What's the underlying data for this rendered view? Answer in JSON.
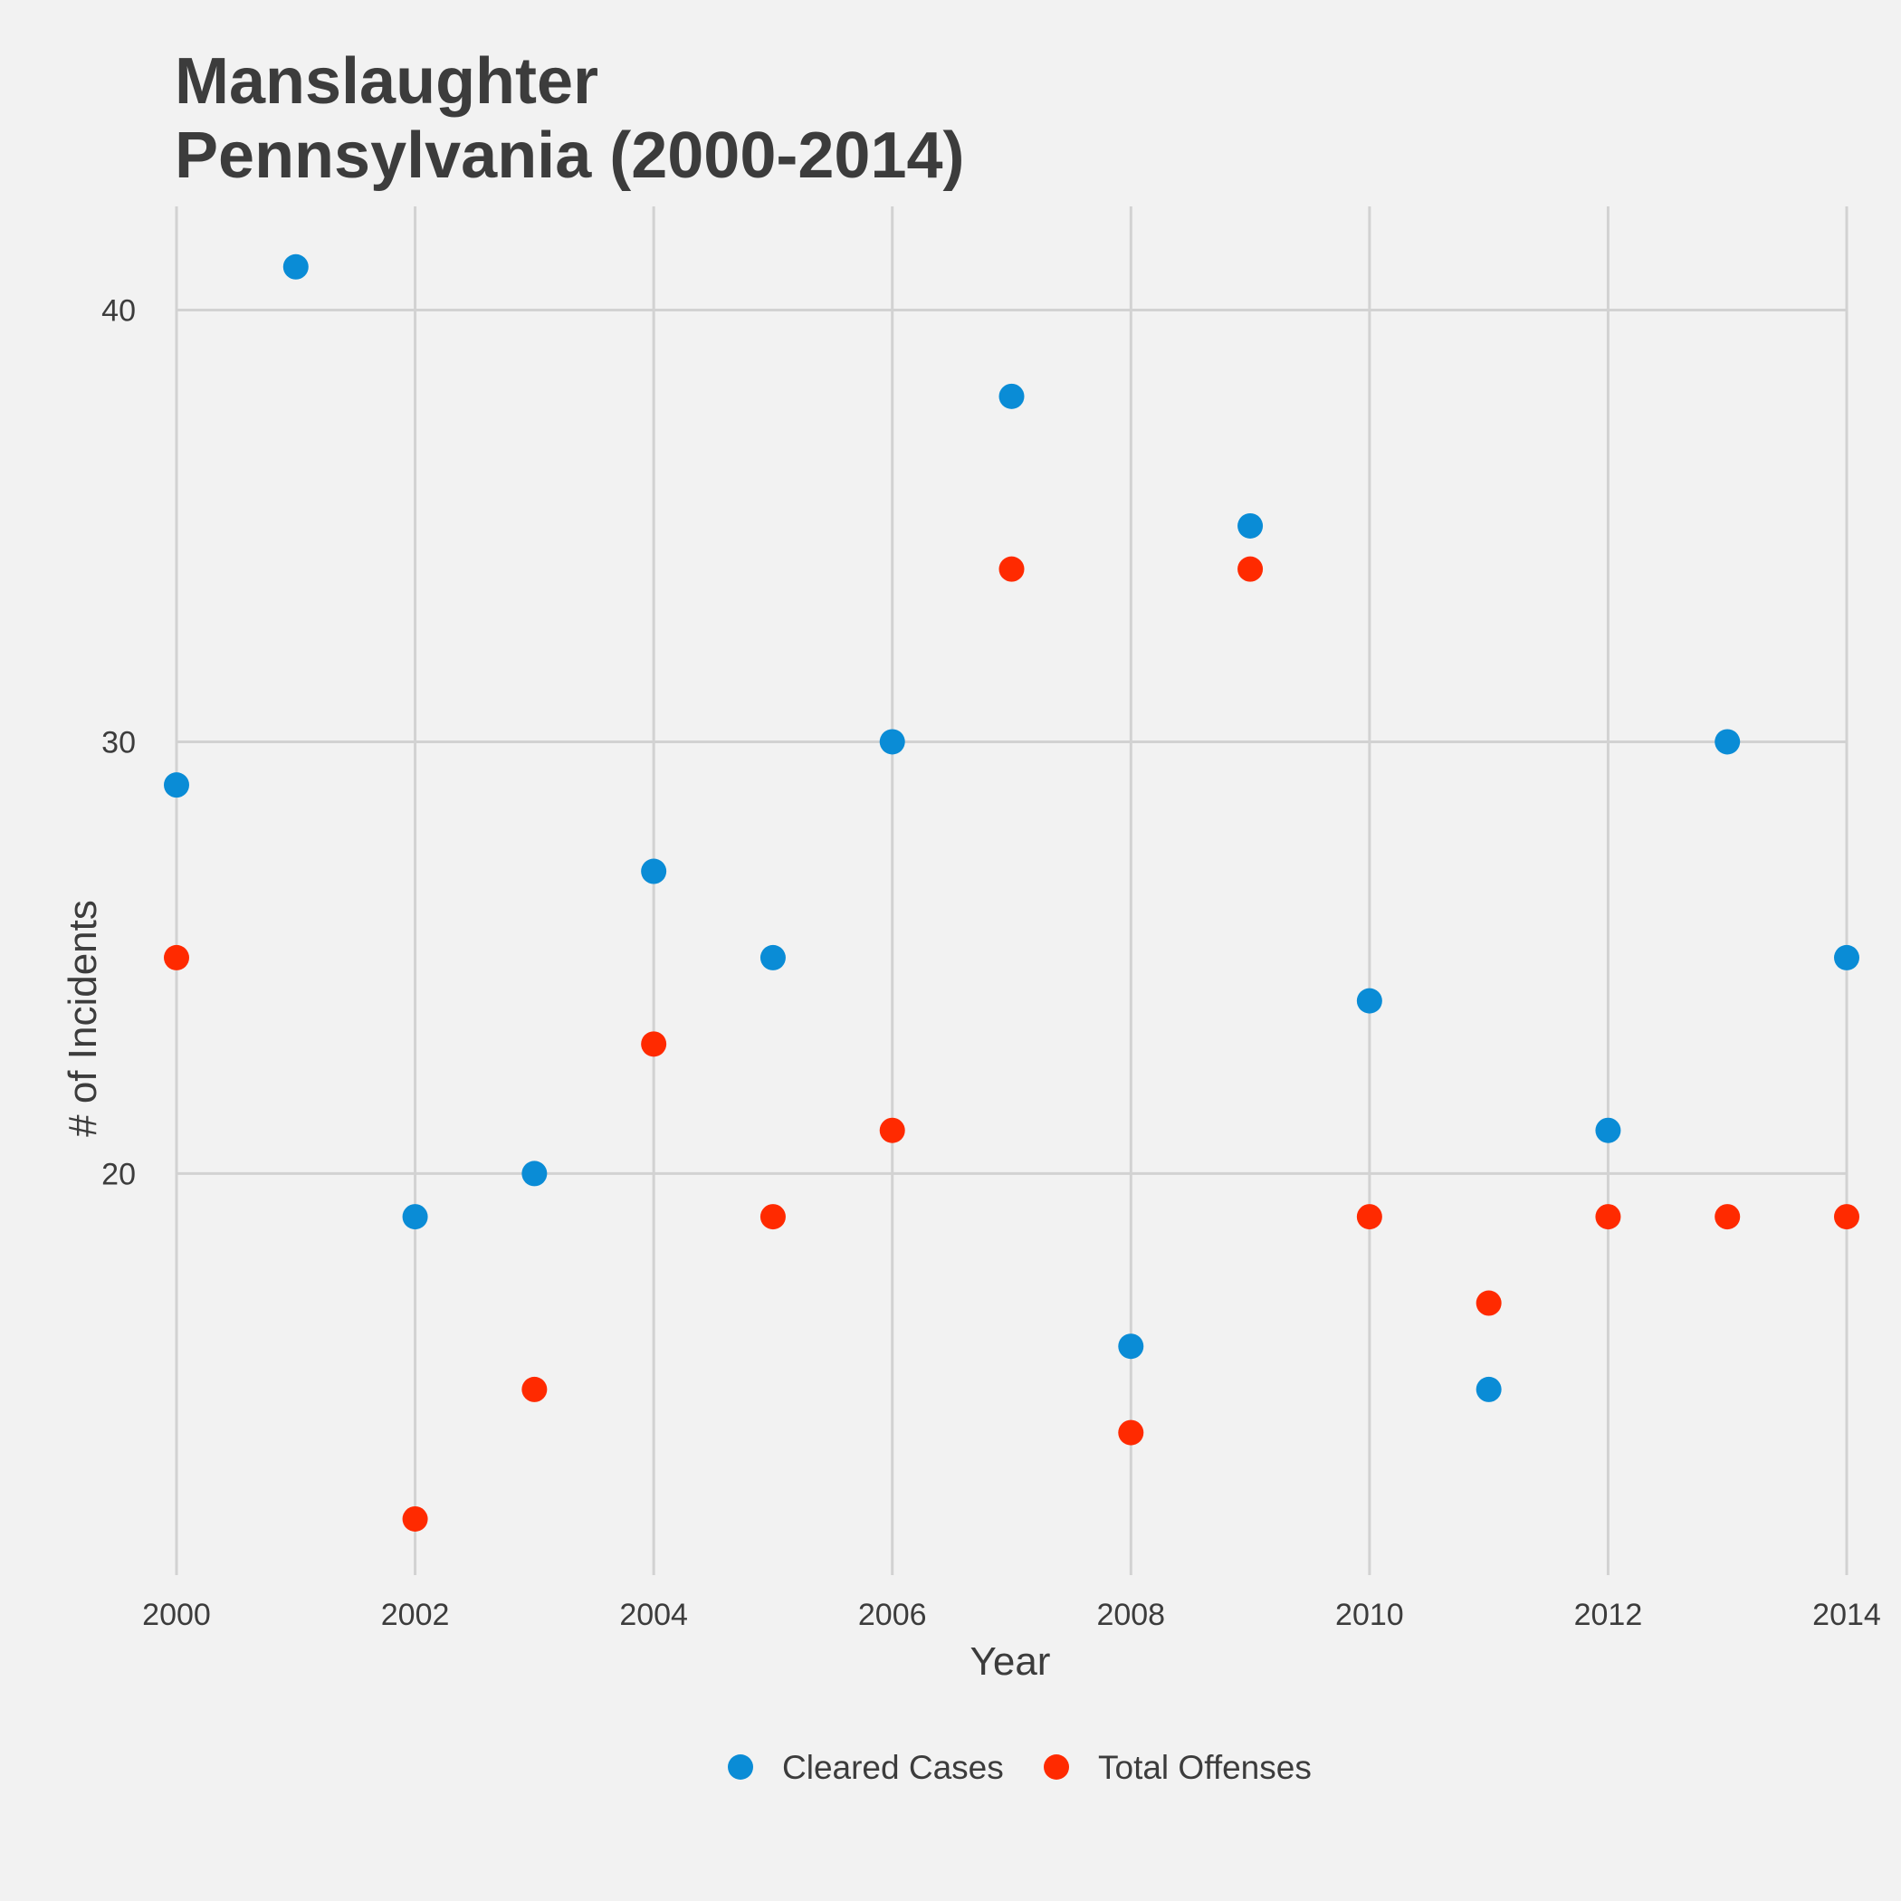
{
  "chart_data": {
    "type": "scatter",
    "title": "Manslaughter",
    "subtitle": "Pennsylvania (2000-2014)",
    "xlabel": "Year",
    "ylabel": "# of Incidents",
    "xlim": [
      2000,
      2014
    ],
    "ylim": [
      10.7,
      42.4
    ],
    "x_ticks": [
      2000,
      2002,
      2004,
      2006,
      2008,
      2010,
      2012,
      2014
    ],
    "y_ticks": [
      20,
      30,
      40
    ],
    "grid": true,
    "legend_position": "bottom",
    "x": [
      2000,
      2001,
      2002,
      2003,
      2004,
      2005,
      2006,
      2007,
      2008,
      2009,
      2010,
      2011,
      2012,
      2013,
      2014
    ],
    "series": [
      {
        "name": "Cleared Cases",
        "color": "#0a8cd6",
        "values": [
          29,
          41,
          19,
          20,
          27,
          25,
          30,
          38,
          16,
          35,
          24,
          15,
          21,
          30,
          25
        ]
      },
      {
        "name": "Total Offenses",
        "color": "#ff2a00",
        "values": [
          25,
          null,
          12,
          15,
          23,
          19,
          21,
          34,
          14,
          34,
          19,
          17,
          19,
          19,
          19
        ]
      }
    ]
  }
}
